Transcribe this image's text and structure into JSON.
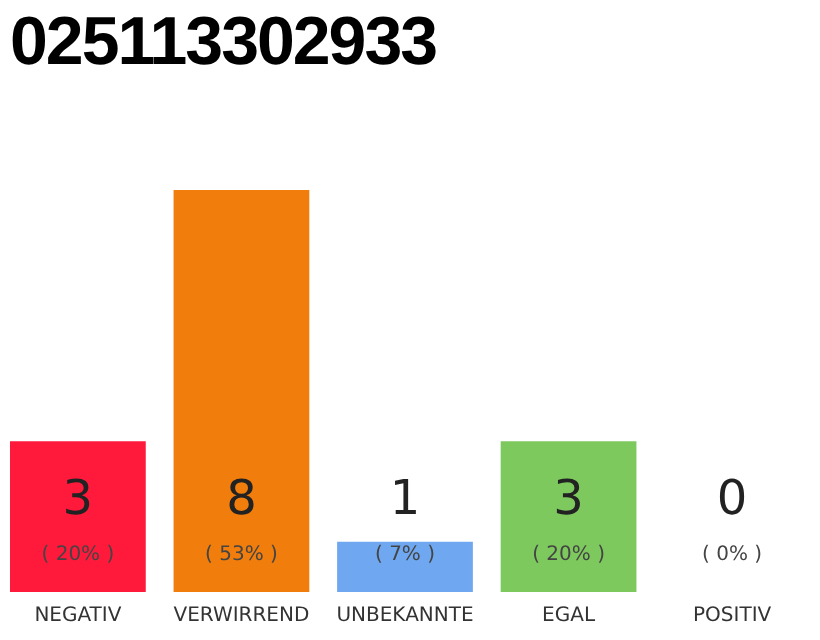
{
  "chart_data": {
    "type": "bar",
    "title": "025113302933",
    "categories": [
      "NEGATIV",
      "VERWIRREND",
      "UNBEKANNTE",
      "EGAL",
      "POSITIV"
    ],
    "values": [
      3,
      8,
      1,
      3,
      0
    ],
    "colors": [
      "#ff1a3c",
      "#f07d0c",
      "#6fa8f0",
      "#7dc95e",
      "#cccccc"
    ],
    "data_labels": true,
    "annotations": [
      "( 20% )",
      "( 53% )",
      "( 7% )",
      "( 20% )",
      "( 0% )"
    ]
  }
}
